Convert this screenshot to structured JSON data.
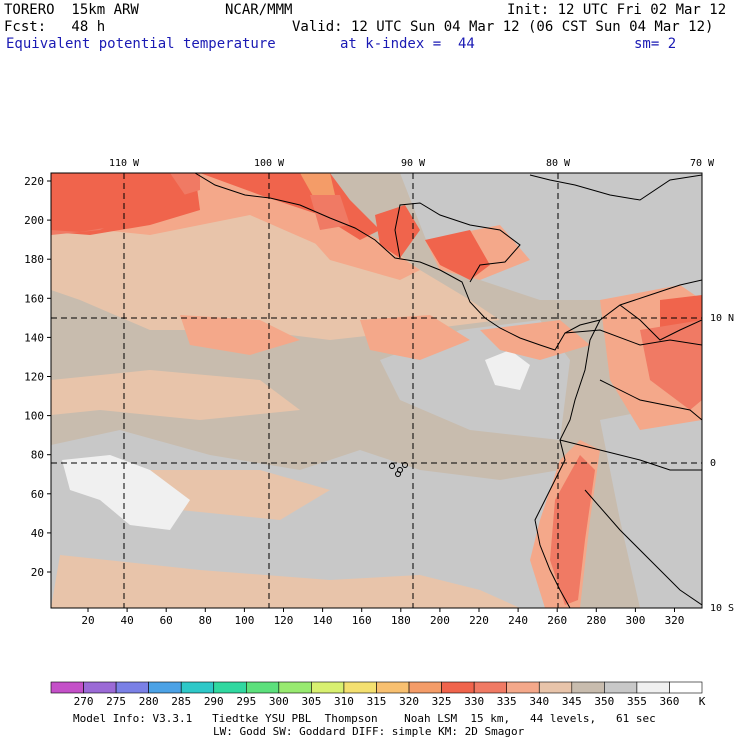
{
  "header": {
    "model": "TORERO  15km ARW",
    "org": "NCAR/MMM",
    "init": "Init: 12 UTC Fri 02 Mar 12",
    "fcst": "Fcst:   48 h",
    "valid": "Valid: 12 UTC Sun 04 Mar 12 (06 CST Sun 04 Mar 12)",
    "field": "Equivalent potential temperature",
    "level": "at k-index =  44",
    "smooth": "sm= 2"
  },
  "map": {
    "top_longitudes": [
      "110 W",
      "100 W",
      "90 W",
      "80 W",
      "70 W"
    ],
    "right_latitudes": [
      "10 N",
      "0",
      "10 S"
    ],
    "y_ticks": [
      "20",
      "40",
      "60",
      "80",
      "100",
      "120",
      "140",
      "160",
      "180",
      "200",
      "220"
    ],
    "x_ticks": [
      "20",
      "40",
      "60",
      "80",
      "100",
      "120",
      "140",
      "160",
      "180",
      "200",
      "220",
      "240",
      "260",
      "280",
      "300",
      "320"
    ]
  },
  "legend": {
    "labels": [
      "270",
      "275",
      "280",
      "285",
      "290",
      "295",
      "300",
      "305",
      "310",
      "315",
      "320",
      "325",
      "330",
      "335",
      "340",
      "345",
      "350",
      "355",
      "360"
    ],
    "unit": "K",
    "colors": [
      "#c450c8",
      "#9b6ad6",
      "#7a80e6",
      "#4ca2e6",
      "#2ec8c8",
      "#30d8a0",
      "#5ce07c",
      "#98ea70",
      "#d8f070",
      "#f4e070",
      "#f8c070",
      "#f49c68",
      "#f0644c",
      "#f07a64",
      "#f4a88a",
      "#e8c4aa",
      "#c8bcae",
      "#c8c8c8",
      "#f0f0f0"
    ]
  },
  "footer": {
    "line1": "Model Info: V3.3.1   Tiedtke YSU PBL  Thompson    Noah LSM  15 km,   44 levels,   61 sec",
    "line2": "LW: Godd SW: Goddard DIFF: simple KM: 2D Smagor"
  }
}
